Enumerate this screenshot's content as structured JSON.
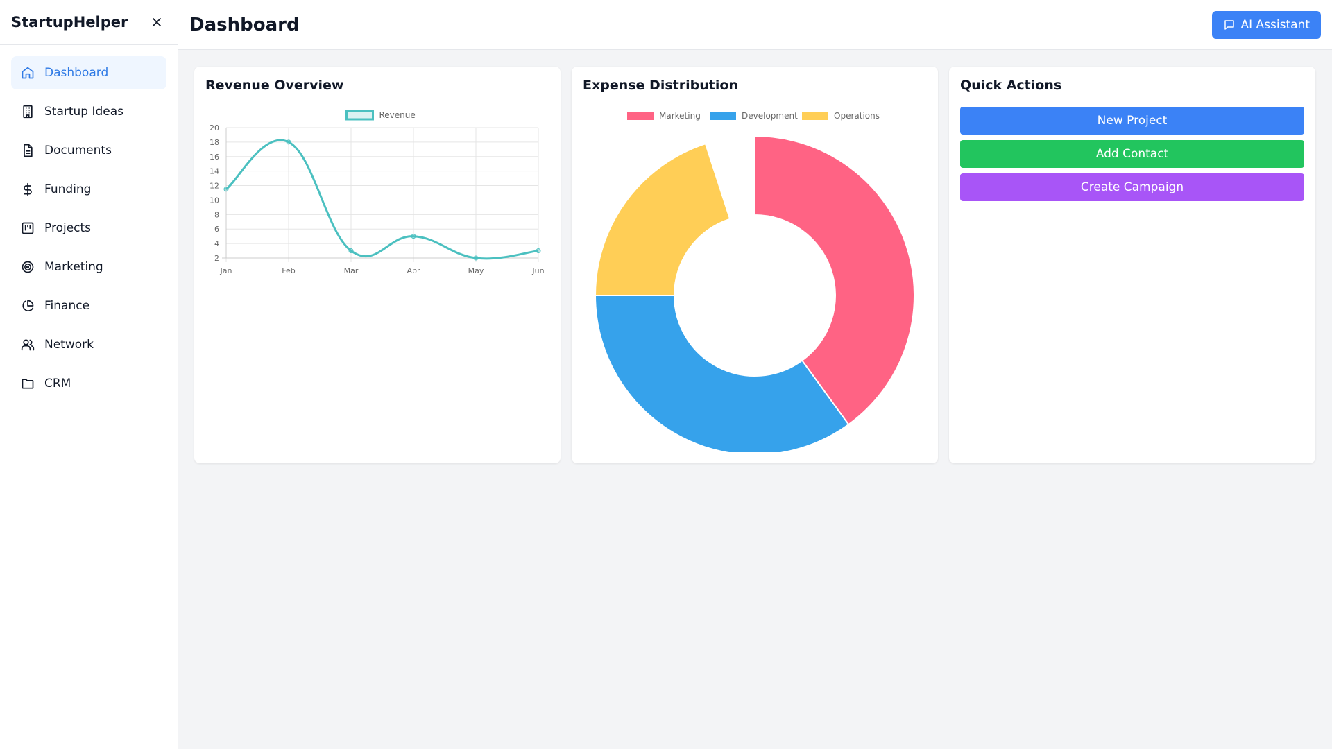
{
  "app": {
    "brand": "StartupHelper",
    "close_icon": "close-icon"
  },
  "sidebar": {
    "items": [
      {
        "label": "Dashboard",
        "icon": "home-icon",
        "active": true
      },
      {
        "label": "Startup Ideas",
        "icon": "building-icon"
      },
      {
        "label": "Documents",
        "icon": "document-icon"
      },
      {
        "label": "Funding",
        "icon": "dollar-icon"
      },
      {
        "label": "Projects",
        "icon": "kanban-icon"
      },
      {
        "label": "Marketing",
        "icon": "target-icon"
      },
      {
        "label": "Finance",
        "icon": "pie-chart-icon"
      },
      {
        "label": "Network",
        "icon": "users-icon"
      },
      {
        "label": "CRM",
        "icon": "folder-icon"
      }
    ]
  },
  "header": {
    "title": "Dashboard",
    "ai_button": "AI Assistant"
  },
  "cards": {
    "revenue": {
      "title": "Revenue Overview"
    },
    "expense": {
      "title": "Expense Distribution"
    },
    "quick": {
      "title": "Quick Actions",
      "buttons": [
        "New Project",
        "Add Contact",
        "Create Campaign"
      ]
    }
  },
  "colors": {
    "accent": "#3b82f6",
    "revenue_line": "#4bc0c0",
    "marketing": "#ff6384",
    "development": "#36a2eb",
    "operations": "#ffce56"
  },
  "chart_data": [
    {
      "type": "line",
      "categories": [
        "Jan",
        "Feb",
        "Mar",
        "Apr",
        "May",
        "Jun"
      ],
      "series": [
        {
          "name": "Revenue",
          "values": [
            11.5,
            18,
            3,
            5,
            2,
            3
          ]
        }
      ],
      "y_ticks": [
        2,
        4,
        6,
        8,
        10,
        12,
        14,
        16,
        18,
        20
      ],
      "ylim": [
        2,
        20
      ],
      "grid": true,
      "legend": "top"
    },
    {
      "type": "pie",
      "labels": [
        "Marketing",
        "Development",
        "Operations"
      ],
      "values": [
        40,
        35,
        20
      ],
      "legend": "top"
    }
  ]
}
